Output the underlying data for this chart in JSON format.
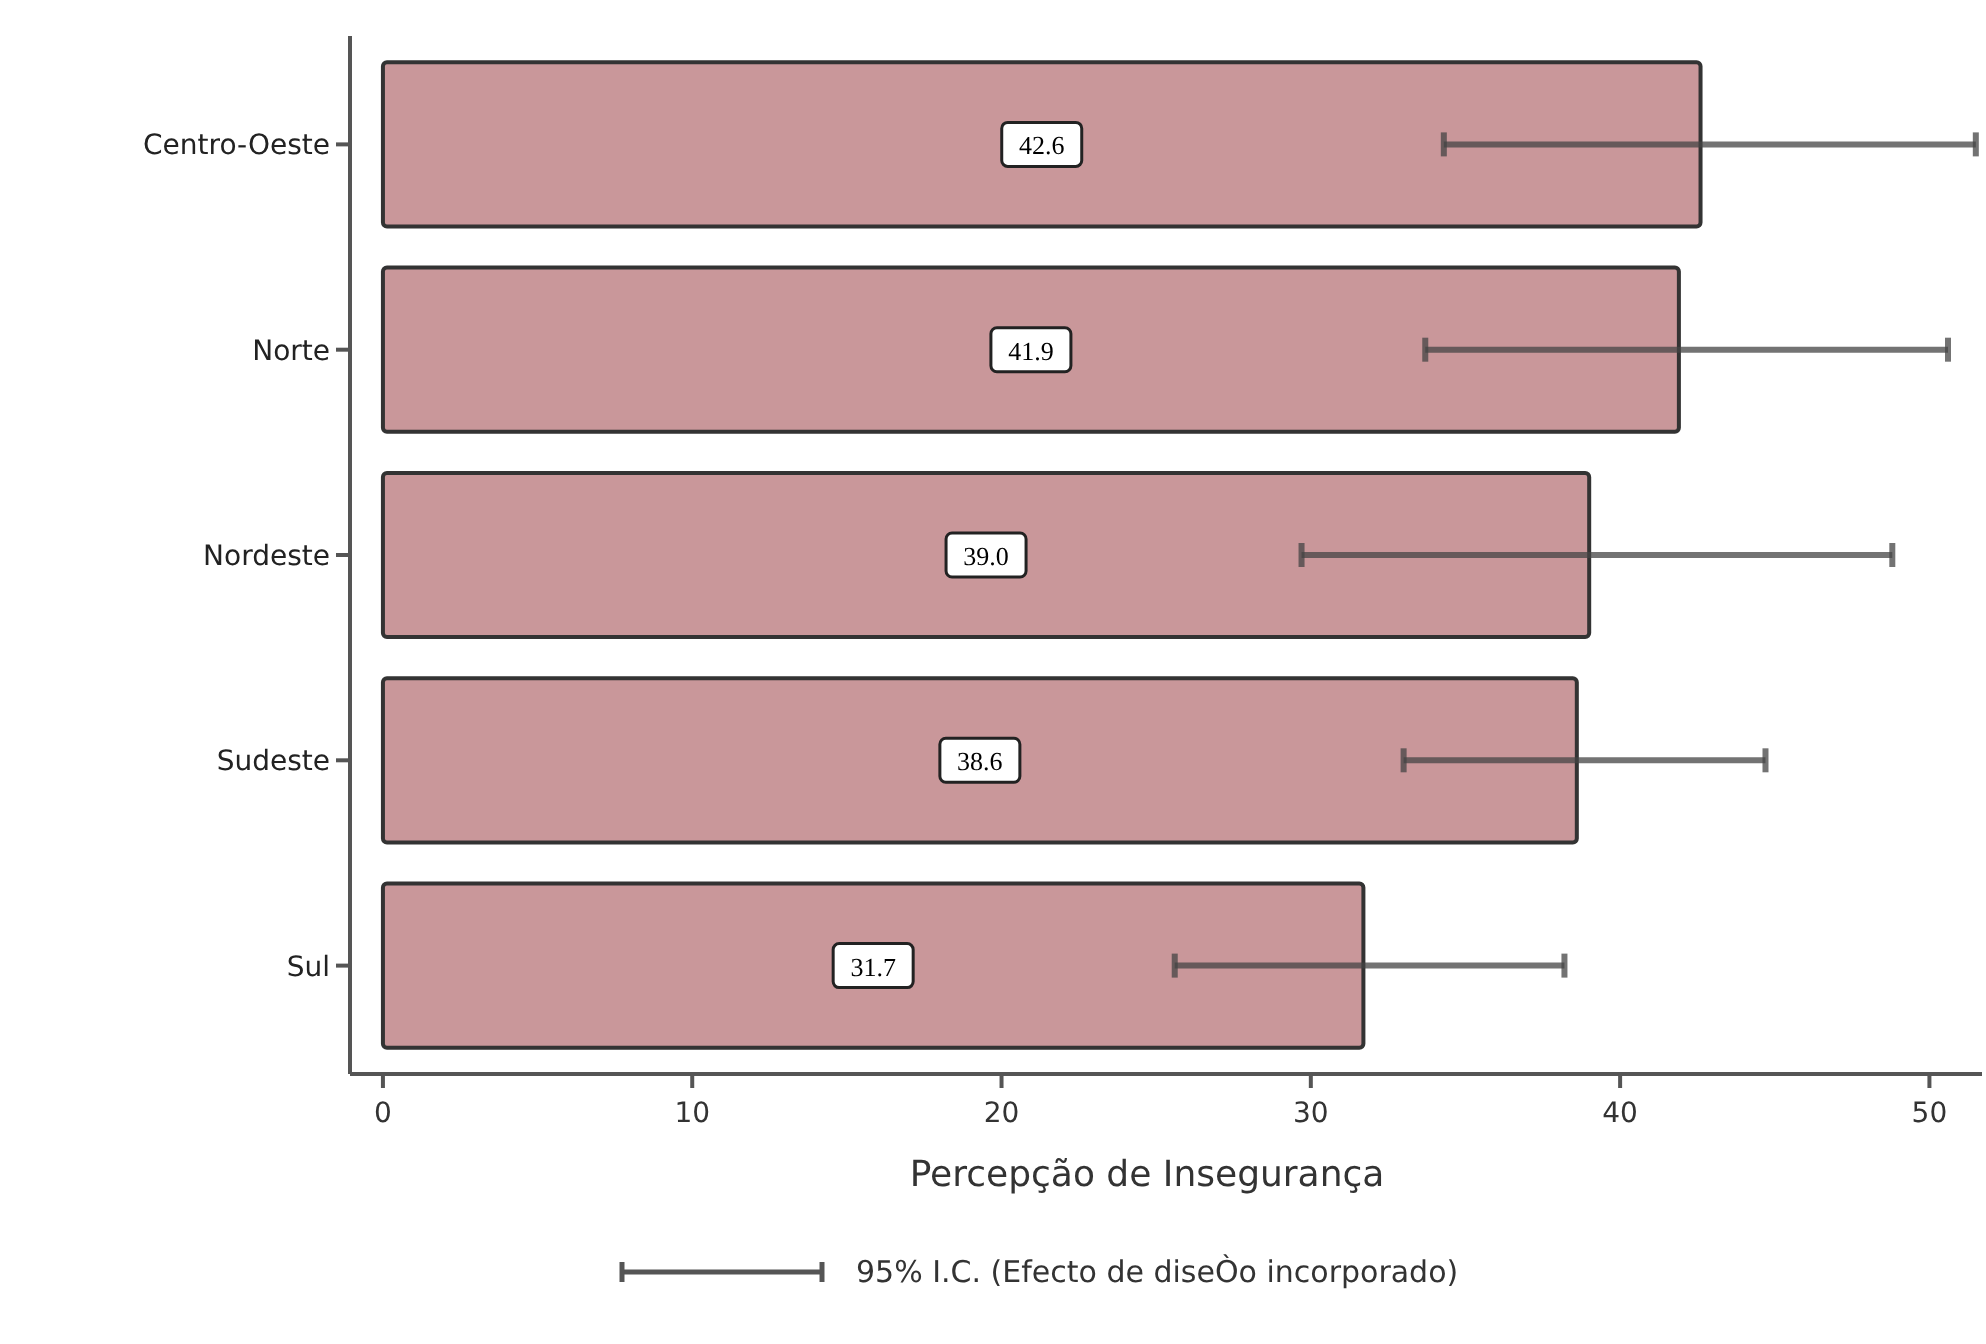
{
  "chart_data": {
    "type": "bar",
    "orientation": "horizontal",
    "xlabel": "Percepção de Insegurança",
    "categories": [
      "Centro-Oeste",
      "Norte",
      "Nordeste",
      "Sudeste",
      "Sul"
    ],
    "values": [
      42.6,
      41.9,
      39.0,
      38.6,
      31.7
    ],
    "color": "#c9979a",
    "errors": [
      [
        34.3,
        51.5
      ],
      [
        33.7,
        50.6
      ],
      [
        29.7,
        48.8
      ],
      [
        33.0,
        44.7
      ],
      [
        25.6,
        38.2
      ]
    ],
    "value_labels": [
      "42.6",
      "41.9",
      "39.0",
      "38.6",
      "31.7"
    ],
    "xlim": [
      -1,
      51.7
    ],
    "xticks": [
      0,
      10,
      20,
      30,
      40,
      50
    ],
    "annotations": [
      "95% I.C. (Efecto de diseÒo incorporado)"
    ]
  }
}
